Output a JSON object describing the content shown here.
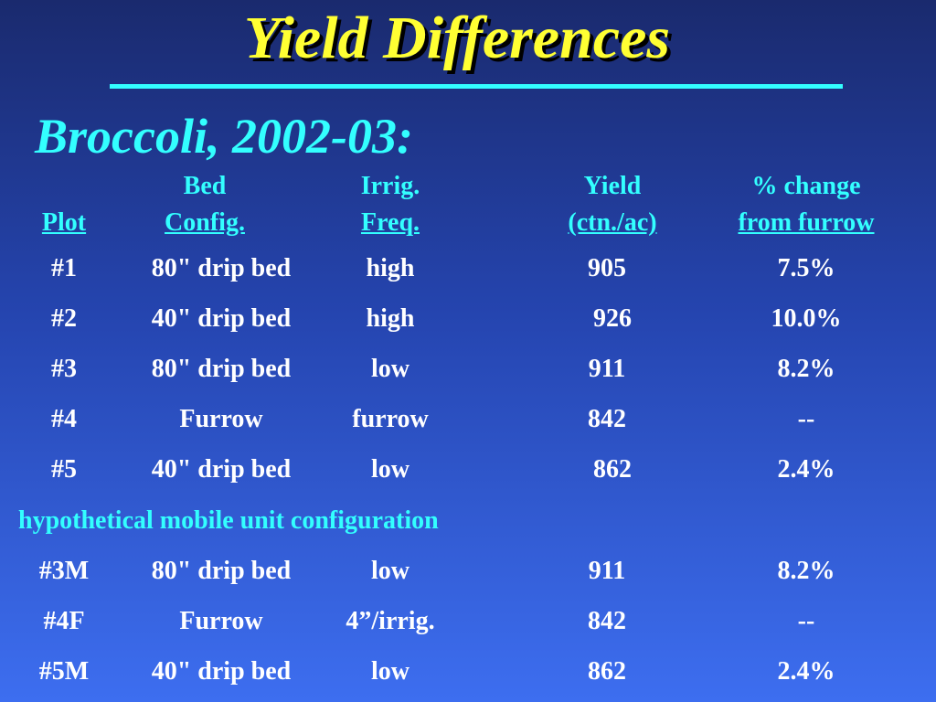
{
  "slide": {
    "title": "Yield Differences",
    "subtitle": "Broccoli, 2002-03:"
  },
  "headers": {
    "plot": {
      "line1": "",
      "line2": "Plot"
    },
    "bed": {
      "line1": "Bed",
      "line2": "Config."
    },
    "irrig": {
      "line1": "Irrig.",
      "line2": "Freq."
    },
    "yield": {
      "line1": "Yield",
      "line2": "(ctn./ac)"
    },
    "pct": {
      "line1": "% change",
      "line2": "from furrow"
    }
  },
  "rows": [
    {
      "plot": "#1",
      "bed": "80\" drip bed",
      "irrig": "high",
      "yield": "905",
      "pct": "7.5%"
    },
    {
      "plot": "#2",
      "bed": "40\" drip bed",
      "irrig": "high",
      "yield": "926",
      "pct": "10.0%"
    },
    {
      "plot": "#3",
      "bed": "80\" drip bed",
      "irrig": "low",
      "yield": "911",
      "pct": "8.2%"
    },
    {
      "plot": "#4",
      "bed": "Furrow",
      "irrig": "furrow",
      "yield": "842",
      "pct": "--"
    },
    {
      "plot": "#5",
      "bed": "40\" drip bed",
      "irrig": "low",
      "yield": "862",
      "pct": "2.4%"
    }
  ],
  "section_label": "hypothetical mobile unit configuration",
  "rows_mobile": [
    {
      "plot": "#3M",
      "bed": "80\" drip bed",
      "irrig": "low",
      "yield": "911",
      "pct": "8.2%"
    },
    {
      "plot": "#4F",
      "bed": "Furrow",
      "irrig": "4”/irrig.",
      "yield": "842",
      "pct": "--"
    },
    {
      "plot": "#5M",
      "bed": "40\" drip bed",
      "irrig": "low",
      "yield": "862",
      "pct": "2.4%"
    }
  ],
  "colors": {
    "title": "#ffff33",
    "accent": "#33ffff",
    "text": "#ffffff",
    "background_top": "#1a2a6e",
    "background_bottom": "#3d6ef0"
  }
}
